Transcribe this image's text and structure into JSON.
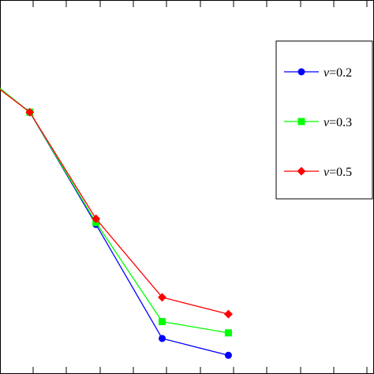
{
  "chart_data": {
    "type": "line",
    "title": "",
    "xlabel": "",
    "ylabel": "",
    "x": [
      1,
      2,
      3,
      4,
      5
    ],
    "xlim": [
      1.55,
      7.2
    ],
    "ylim": [
      0,
      1
    ],
    "grid": false,
    "legend_position": "top-right",
    "series": [
      {
        "name": "ν=0.2",
        "legend_var": "ν",
        "legend_val": "=0.2",
        "color": "#0000ff",
        "marker": "circle",
        "values": [
          0.84,
          0.7,
          0.4,
          0.095,
          0.05
        ]
      },
      {
        "name": "ν=0.3",
        "legend_var": "ν",
        "legend_val": "=0.3",
        "color": "#00ff00",
        "marker": "square",
        "values": [
          0.842,
          0.7,
          0.405,
          0.14,
          0.11
        ]
      },
      {
        "name": "ν=0.5",
        "legend_var": "ν",
        "legend_val": "=0.5",
        "color": "#ff0000",
        "marker": "diamond",
        "values": [
          0.835,
          0.7,
          0.415,
          0.205,
          0.16
        ]
      }
    ]
  }
}
